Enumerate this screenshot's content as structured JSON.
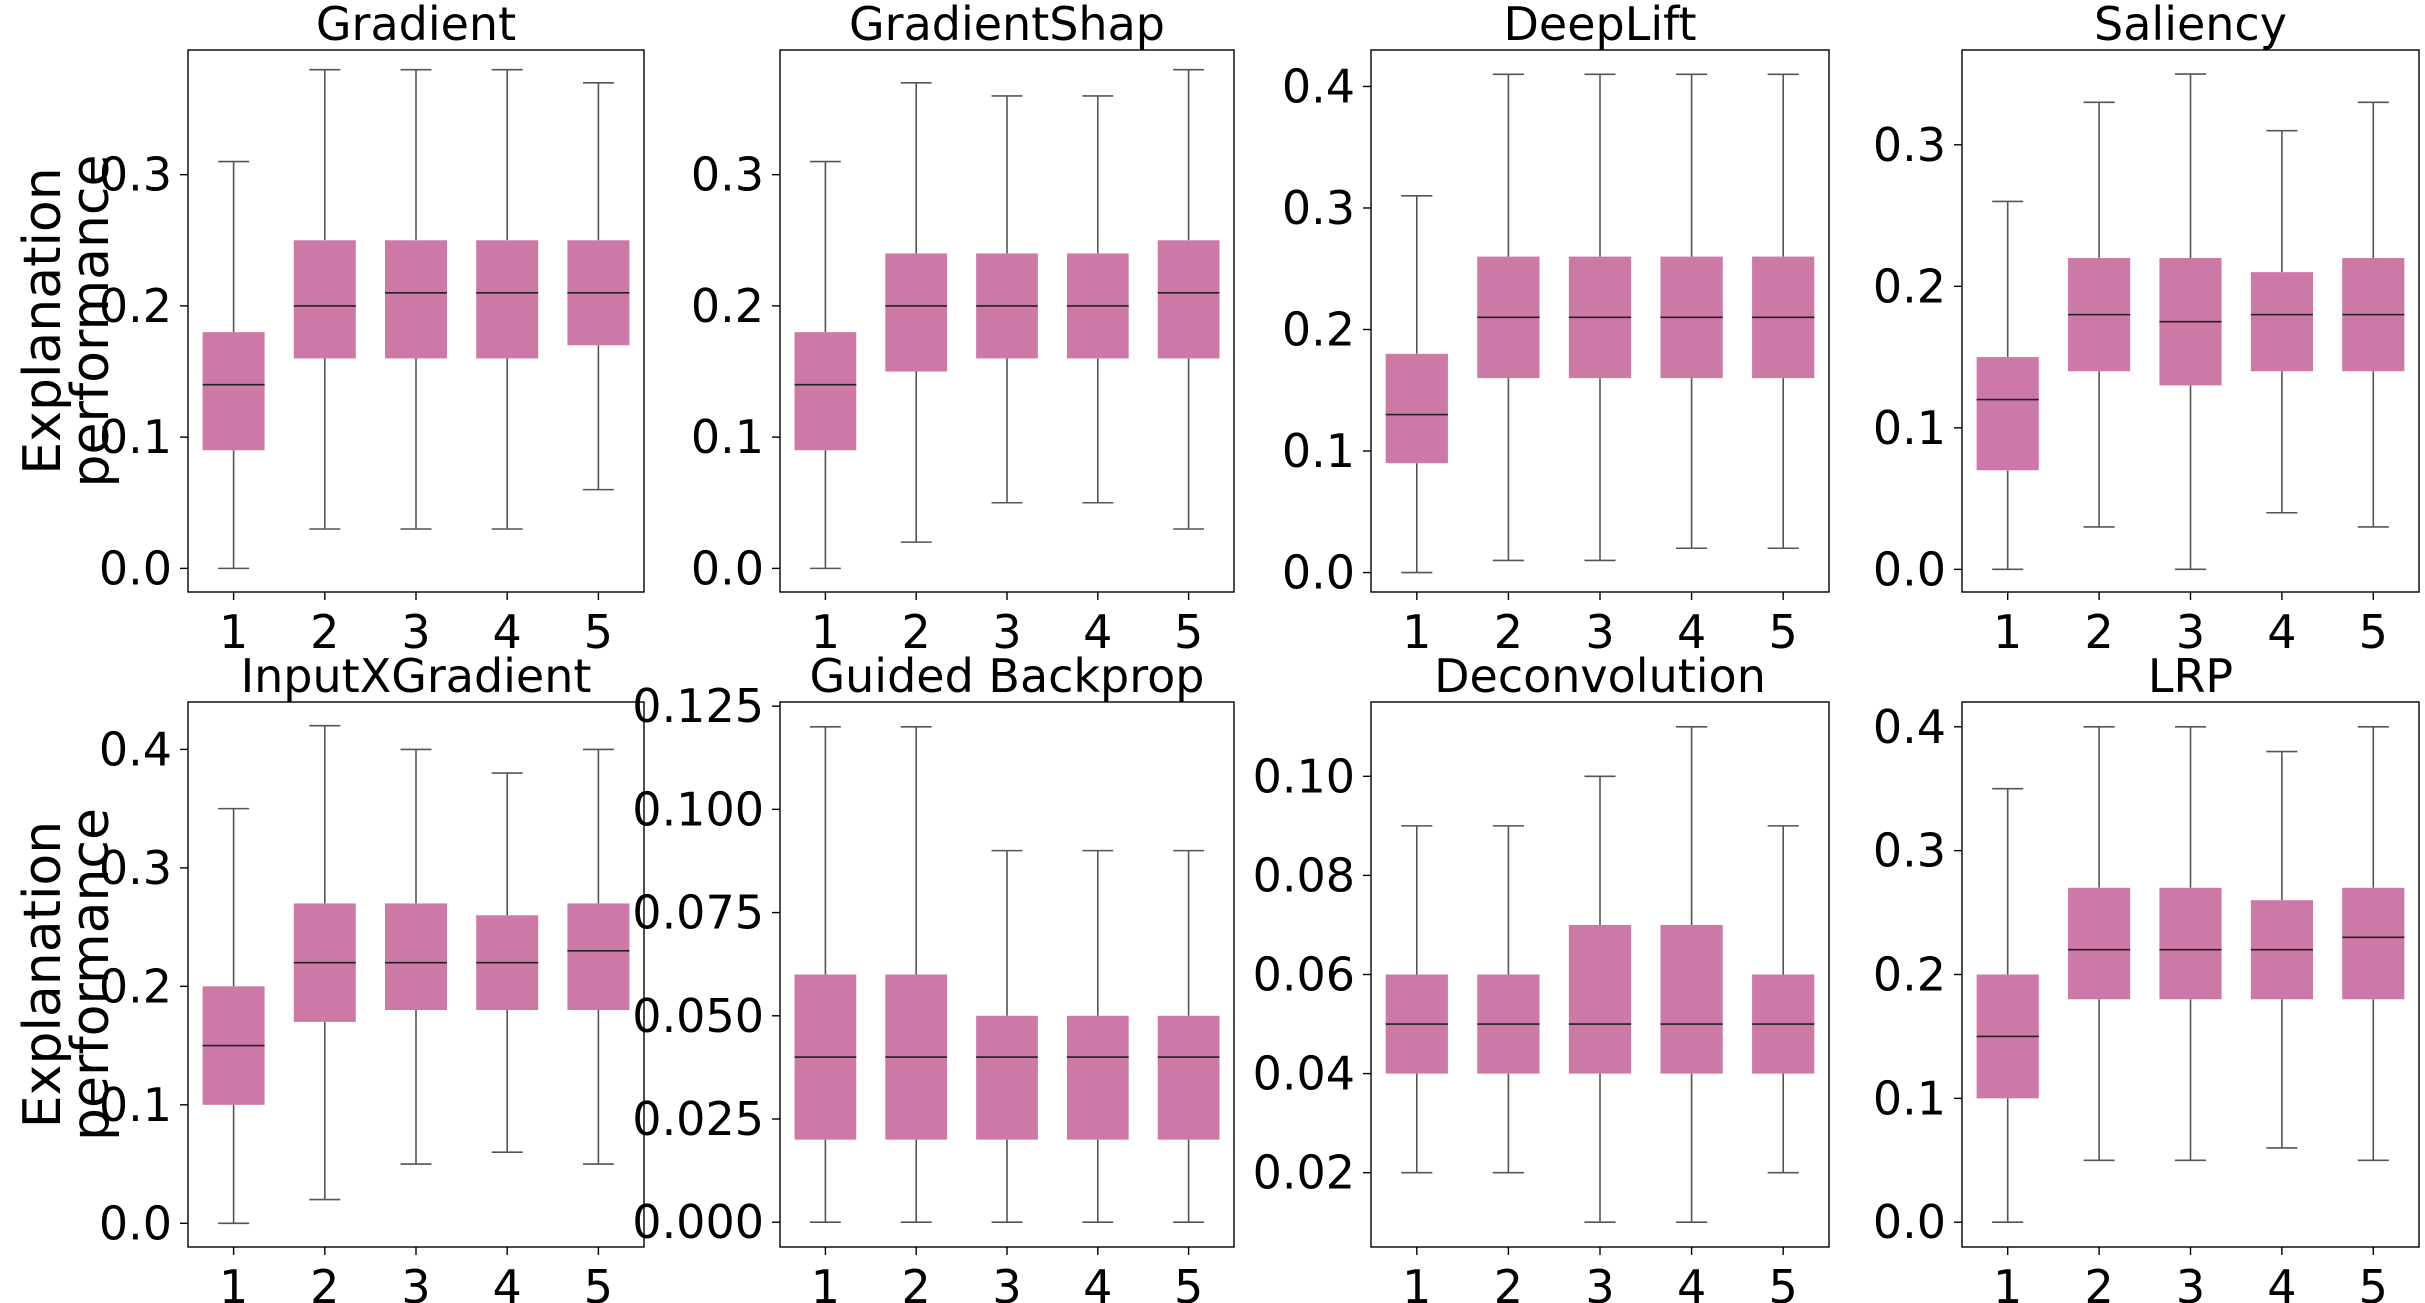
{
  "colors": {
    "box_fill": "#cc79a7",
    "whisker": "#555555",
    "median": "#222222"
  },
  "ylabel_lines": [
    "Explanation",
    "performance"
  ],
  "chart_data": [
    {
      "type": "box",
      "title": "Gradient",
      "categories": [
        "1",
        "2",
        "3",
        "4",
        "5"
      ],
      "ylim": [
        -0.018,
        0.395
      ],
      "yticks": [
        0.0,
        0.1,
        0.2,
        0.3
      ],
      "ytick_labels": [
        "0.0",
        "0.1",
        "0.2",
        "0.3"
      ],
      "boxes": [
        {
          "min": 0.0,
          "q1": 0.09,
          "median": 0.14,
          "q3": 0.18,
          "max": 0.31
        },
        {
          "min": 0.03,
          "q1": 0.16,
          "median": 0.2,
          "q3": 0.25,
          "max": 0.38
        },
        {
          "min": 0.03,
          "q1": 0.16,
          "median": 0.21,
          "q3": 0.25,
          "max": 0.38
        },
        {
          "min": 0.03,
          "q1": 0.16,
          "median": 0.21,
          "q3": 0.25,
          "max": 0.38
        },
        {
          "min": 0.06,
          "q1": 0.17,
          "median": 0.21,
          "q3": 0.25,
          "max": 0.37
        }
      ]
    },
    {
      "type": "box",
      "title": "GradientShap",
      "categories": [
        "1",
        "2",
        "3",
        "4",
        "5"
      ],
      "ylim": [
        -0.018,
        0.395
      ],
      "yticks": [
        0.0,
        0.1,
        0.2,
        0.3
      ],
      "ytick_labels": [
        "0.0",
        "0.1",
        "0.2",
        "0.3"
      ],
      "boxes": [
        {
          "min": 0.0,
          "q1": 0.09,
          "median": 0.14,
          "q3": 0.18,
          "max": 0.31
        },
        {
          "min": 0.02,
          "q1": 0.15,
          "median": 0.2,
          "q3": 0.24,
          "max": 0.37
        },
        {
          "min": 0.05,
          "q1": 0.16,
          "median": 0.2,
          "q3": 0.24,
          "max": 0.36
        },
        {
          "min": 0.05,
          "q1": 0.16,
          "median": 0.2,
          "q3": 0.24,
          "max": 0.36
        },
        {
          "min": 0.03,
          "q1": 0.16,
          "median": 0.21,
          "q3": 0.25,
          "max": 0.38
        }
      ]
    },
    {
      "type": "box",
      "title": "DeepLift",
      "categories": [
        "1",
        "2",
        "3",
        "4",
        "5"
      ],
      "ylim": [
        -0.016,
        0.43
      ],
      "yticks": [
        0.0,
        0.1,
        0.2,
        0.3,
        0.4
      ],
      "ytick_labels": [
        "0.0",
        "0.1",
        "0.2",
        "0.3",
        "0.4"
      ],
      "boxes": [
        {
          "min": 0.0,
          "q1": 0.09,
          "median": 0.13,
          "q3": 0.18,
          "max": 0.31
        },
        {
          "min": 0.01,
          "q1": 0.16,
          "median": 0.21,
          "q3": 0.26,
          "max": 0.41
        },
        {
          "min": 0.01,
          "q1": 0.16,
          "median": 0.21,
          "q3": 0.26,
          "max": 0.41
        },
        {
          "min": 0.02,
          "q1": 0.16,
          "median": 0.21,
          "q3": 0.26,
          "max": 0.41
        },
        {
          "min": 0.02,
          "q1": 0.16,
          "median": 0.21,
          "q3": 0.26,
          "max": 0.41
        }
      ]
    },
    {
      "type": "box",
      "title": "Saliency",
      "categories": [
        "1",
        "2",
        "3",
        "4",
        "5"
      ],
      "ylim": [
        -0.016,
        0.367
      ],
      "yticks": [
        0.0,
        0.1,
        0.2,
        0.3
      ],
      "ytick_labels": [
        "0.0",
        "0.1",
        "0.2",
        "0.3"
      ],
      "boxes": [
        {
          "min": 0.0,
          "q1": 0.07,
          "median": 0.12,
          "q3": 0.15,
          "max": 0.26
        },
        {
          "min": 0.03,
          "q1": 0.14,
          "median": 0.18,
          "q3": 0.22,
          "max": 0.33
        },
        {
          "min": 0.0,
          "q1": 0.13,
          "median": 0.175,
          "q3": 0.22,
          "max": 0.35
        },
        {
          "min": 0.04,
          "q1": 0.14,
          "median": 0.18,
          "q3": 0.21,
          "max": 0.31
        },
        {
          "min": 0.03,
          "q1": 0.14,
          "median": 0.18,
          "q3": 0.22,
          "max": 0.33
        }
      ]
    },
    {
      "type": "box",
      "title": "InputXGradient",
      "categories": [
        "1",
        "2",
        "3",
        "4",
        "5"
      ],
      "ylim": [
        -0.02,
        0.44
      ],
      "yticks": [
        0.0,
        0.1,
        0.2,
        0.3,
        0.4
      ],
      "ytick_labels": [
        "0.0",
        "0.1",
        "0.2",
        "0.3",
        "0.4"
      ],
      "boxes": [
        {
          "min": 0.0,
          "q1": 0.1,
          "median": 0.15,
          "q3": 0.2,
          "max": 0.35
        },
        {
          "min": 0.02,
          "q1": 0.17,
          "median": 0.22,
          "q3": 0.27,
          "max": 0.42
        },
        {
          "min": 0.05,
          "q1": 0.18,
          "median": 0.22,
          "q3": 0.27,
          "max": 0.4
        },
        {
          "min": 0.06,
          "q1": 0.18,
          "median": 0.22,
          "q3": 0.26,
          "max": 0.38
        },
        {
          "min": 0.05,
          "q1": 0.18,
          "median": 0.23,
          "q3": 0.27,
          "max": 0.4
        }
      ]
    },
    {
      "type": "box",
      "title": "Guided Backprop",
      "categories": [
        "1",
        "2",
        "3",
        "4",
        "5"
      ],
      "ylim": [
        -0.006,
        0.126
      ],
      "yticks": [
        0.0,
        0.025,
        0.05,
        0.075,
        0.1,
        0.125
      ],
      "ytick_labels": [
        "0.000",
        "0.025",
        "0.050",
        "0.075",
        "0.100",
        "0.125"
      ],
      "boxes": [
        {
          "min": 0.0,
          "q1": 0.02,
          "median": 0.04,
          "q3": 0.06,
          "max": 0.12
        },
        {
          "min": 0.0,
          "q1": 0.02,
          "median": 0.04,
          "q3": 0.06,
          "max": 0.12
        },
        {
          "min": 0.0,
          "q1": 0.02,
          "median": 0.04,
          "q3": 0.05,
          "max": 0.09
        },
        {
          "min": 0.0,
          "q1": 0.02,
          "median": 0.04,
          "q3": 0.05,
          "max": 0.09
        },
        {
          "min": 0.0,
          "q1": 0.02,
          "median": 0.04,
          "q3": 0.05,
          "max": 0.09
        }
      ]
    },
    {
      "type": "box",
      "title": "Deconvolution",
      "categories": [
        "1",
        "2",
        "3",
        "4",
        "5"
      ],
      "ylim": [
        0.005,
        0.115
      ],
      "yticks": [
        0.02,
        0.04,
        0.06,
        0.08,
        0.1
      ],
      "ytick_labels": [
        "0.02",
        "0.04",
        "0.06",
        "0.08",
        "0.10"
      ],
      "boxes": [
        {
          "min": 0.02,
          "q1": 0.04,
          "median": 0.05,
          "q3": 0.06,
          "max": 0.09
        },
        {
          "min": 0.02,
          "q1": 0.04,
          "median": 0.05,
          "q3": 0.06,
          "max": 0.09
        },
        {
          "min": 0.01,
          "q1": 0.04,
          "median": 0.05,
          "q3": 0.07,
          "max": 0.1
        },
        {
          "min": 0.01,
          "q1": 0.04,
          "median": 0.05,
          "q3": 0.07,
          "max": 0.11
        },
        {
          "min": 0.02,
          "q1": 0.04,
          "median": 0.05,
          "q3": 0.06,
          "max": 0.09
        }
      ]
    },
    {
      "type": "box",
      "title": "LRP",
      "categories": [
        "1",
        "2",
        "3",
        "4",
        "5"
      ],
      "ylim": [
        -0.02,
        0.42
      ],
      "yticks": [
        0.0,
        0.1,
        0.2,
        0.3,
        0.4
      ],
      "ytick_labels": [
        "0.0",
        "0.1",
        "0.2",
        "0.3",
        "0.4"
      ],
      "boxes": [
        {
          "min": 0.0,
          "q1": 0.1,
          "median": 0.15,
          "q3": 0.2,
          "max": 0.35
        },
        {
          "min": 0.05,
          "q1": 0.18,
          "median": 0.22,
          "q3": 0.27,
          "max": 0.4
        },
        {
          "min": 0.05,
          "q1": 0.18,
          "median": 0.22,
          "q3": 0.27,
          "max": 0.4
        },
        {
          "min": 0.06,
          "q1": 0.18,
          "median": 0.22,
          "q3": 0.26,
          "max": 0.38
        },
        {
          "min": 0.05,
          "q1": 0.18,
          "median": 0.23,
          "q3": 0.27,
          "max": 0.4
        }
      ]
    }
  ]
}
